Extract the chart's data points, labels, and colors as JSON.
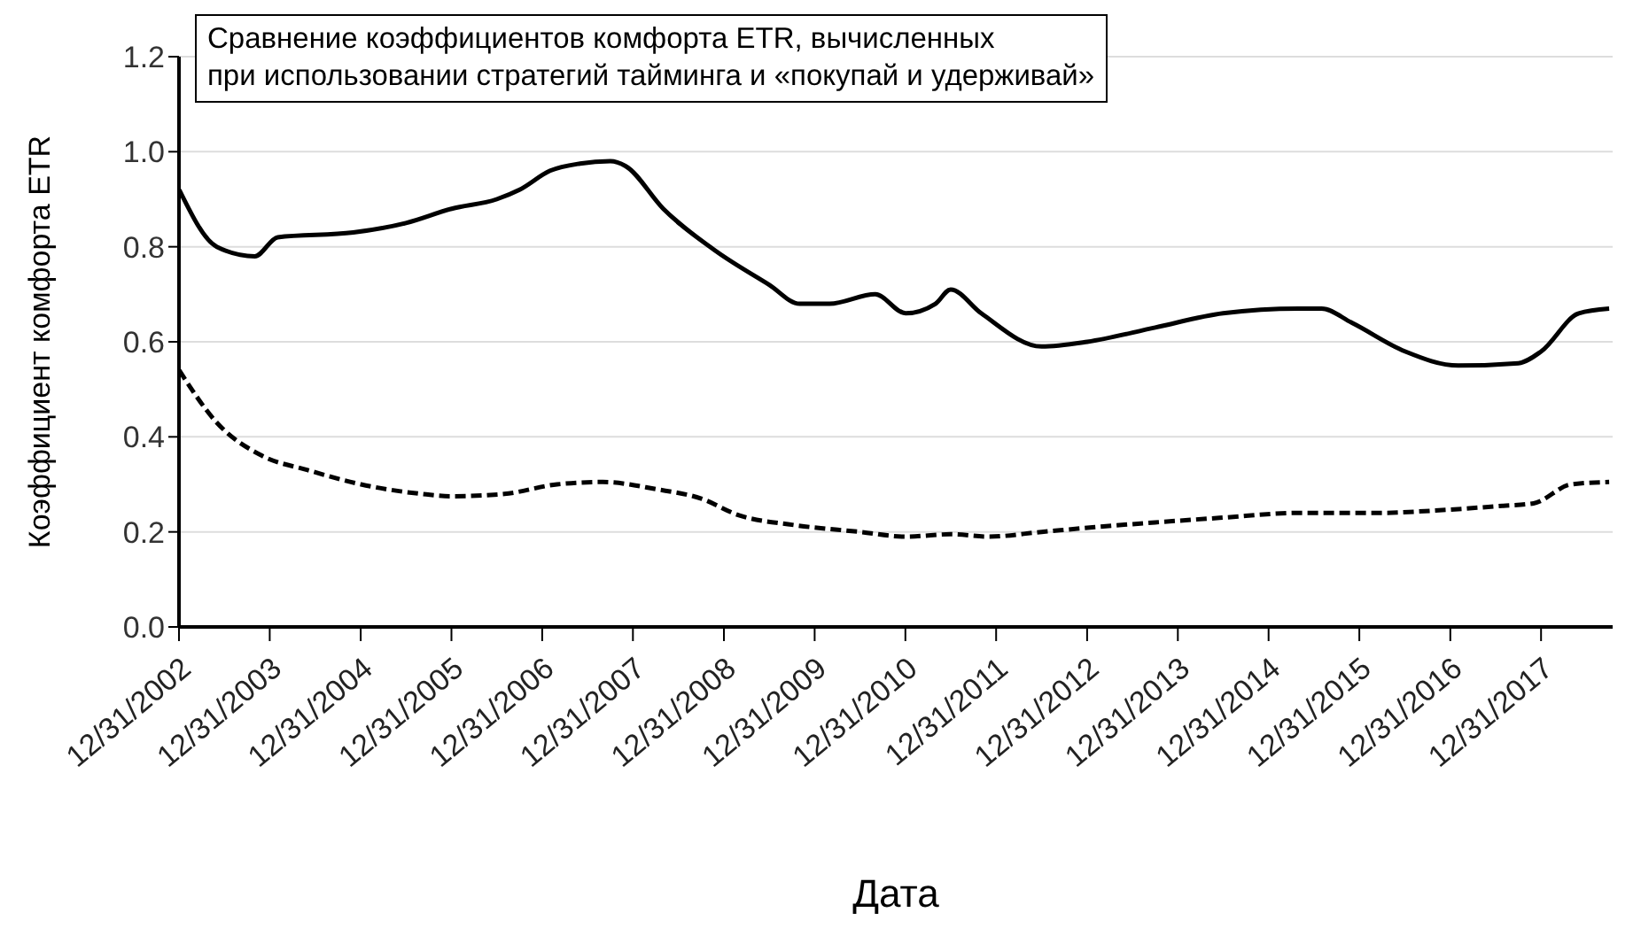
{
  "chart_data": {
    "type": "line",
    "title": "Сравнение коэффициентов комфорта ETR, вычисленных\nпри использовании стратегий тайминга и «покупай и удерживай»",
    "xlabel": "Дата",
    "ylabel": "Коэффициент комфорта ETR",
    "xlim": [
      "2002-12-31",
      "2018-10-15"
    ],
    "xticks": [
      {
        "value": "2002-12-31",
        "label": "12/31/2002"
      },
      {
        "value": "2003-12-31",
        "label": "12/31/2003"
      },
      {
        "value": "2004-12-31",
        "label": "12/31/2004"
      },
      {
        "value": "2005-12-31",
        "label": "12/31/2005"
      },
      {
        "value": "2006-12-31",
        "label": "12/31/2006"
      },
      {
        "value": "2007-12-31",
        "label": "12/31/2007"
      },
      {
        "value": "2008-12-31",
        "label": "12/31/2008"
      },
      {
        "value": "2009-12-31",
        "label": "12/31/2009"
      },
      {
        "value": "2010-12-31",
        "label": "12/31/2010"
      },
      {
        "value": "2011-12-31",
        "label": "12/31/2011"
      },
      {
        "value": "2012-12-31",
        "label": "12/31/2012"
      },
      {
        "value": "2013-12-31",
        "label": "12/31/2013"
      },
      {
        "value": "2014-12-31",
        "label": "12/31/2014"
      },
      {
        "value": "2015-12-31",
        "label": "12/31/2015"
      },
      {
        "value": "2016-12-31",
        "label": "12/31/2016"
      },
      {
        "value": "2017-12-31",
        "label": "12/31/2017"
      }
    ],
    "ylim": [
      0,
      1.2
    ],
    "yticks": [
      {
        "value": 0,
        "label": "0.0"
      },
      0.2,
      0.4,
      0.6,
      0.8,
      {
        "value": 1,
        "label": "1.0"
      },
      1.2
    ],
    "grid": "y",
    "marker": "none",
    "series": [
      {
        "color": "#000000",
        "line_style": "solid",
        "x": [
          "2003-01",
          "2003-06",
          "2003-11",
          "2004-02",
          "2004-12",
          "2005-07",
          "2006-01",
          "2006-07",
          "2006-10",
          "2007-02",
          "2007-06",
          "2007-10",
          "2007-12",
          "2008-05",
          "2008-12",
          "2009-07",
          "2009-11",
          "2010-03",
          "2010-09",
          "2011-01",
          "2011-05",
          "2011-07",
          "2011-11",
          "2012-07",
          "2013-01",
          "2013-10",
          "2014-07",
          "2015-05",
          "2015-08",
          "2015-12",
          "2016-07",
          "2017-02",
          "2017-10",
          "2018-01",
          "2018-06",
          "2018-10"
        ],
        "values": [
          0.92,
          0.8,
          0.78,
          0.82,
          0.83,
          0.85,
          0.88,
          0.9,
          0.92,
          0.96,
          0.975,
          0.98,
          0.97,
          0.88,
          0.79,
          0.72,
          0.68,
          0.68,
          0.7,
          0.66,
          0.68,
          0.71,
          0.66,
          0.59,
          0.6,
          0.63,
          0.66,
          0.67,
          0.67,
          0.64,
          0.58,
          0.55,
          0.555,
          0.58,
          0.66,
          0.67
        ]
      },
      {
        "color": "#000000",
        "line_style": "dashed",
        "x": [
          "2003-01",
          "2003-06",
          "2003-12",
          "2004-06",
          "2005-01",
          "2005-09",
          "2006-01",
          "2006-08",
          "2007-03",
          "2007-09",
          "2008-04",
          "2008-10",
          "2009-03",
          "2009-10",
          "2010-07",
          "2011-01",
          "2011-07",
          "2011-12",
          "2012-07",
          "2013-02",
          "2013-10",
          "2014-07",
          "2015-05",
          "2016-04",
          "2016-11",
          "2017-08",
          "2017-12",
          "2018-05",
          "2018-10"
        ],
        "values": [
          0.54,
          0.43,
          0.36,
          0.33,
          0.3,
          0.28,
          0.275,
          0.28,
          0.3,
          0.305,
          0.29,
          0.27,
          0.235,
          0.215,
          0.2,
          0.19,
          0.195,
          0.19,
          0.2,
          0.21,
          0.22,
          0.23,
          0.24,
          0.24,
          0.245,
          0.255,
          0.26,
          0.3,
          0.305
        ]
      }
    ]
  }
}
